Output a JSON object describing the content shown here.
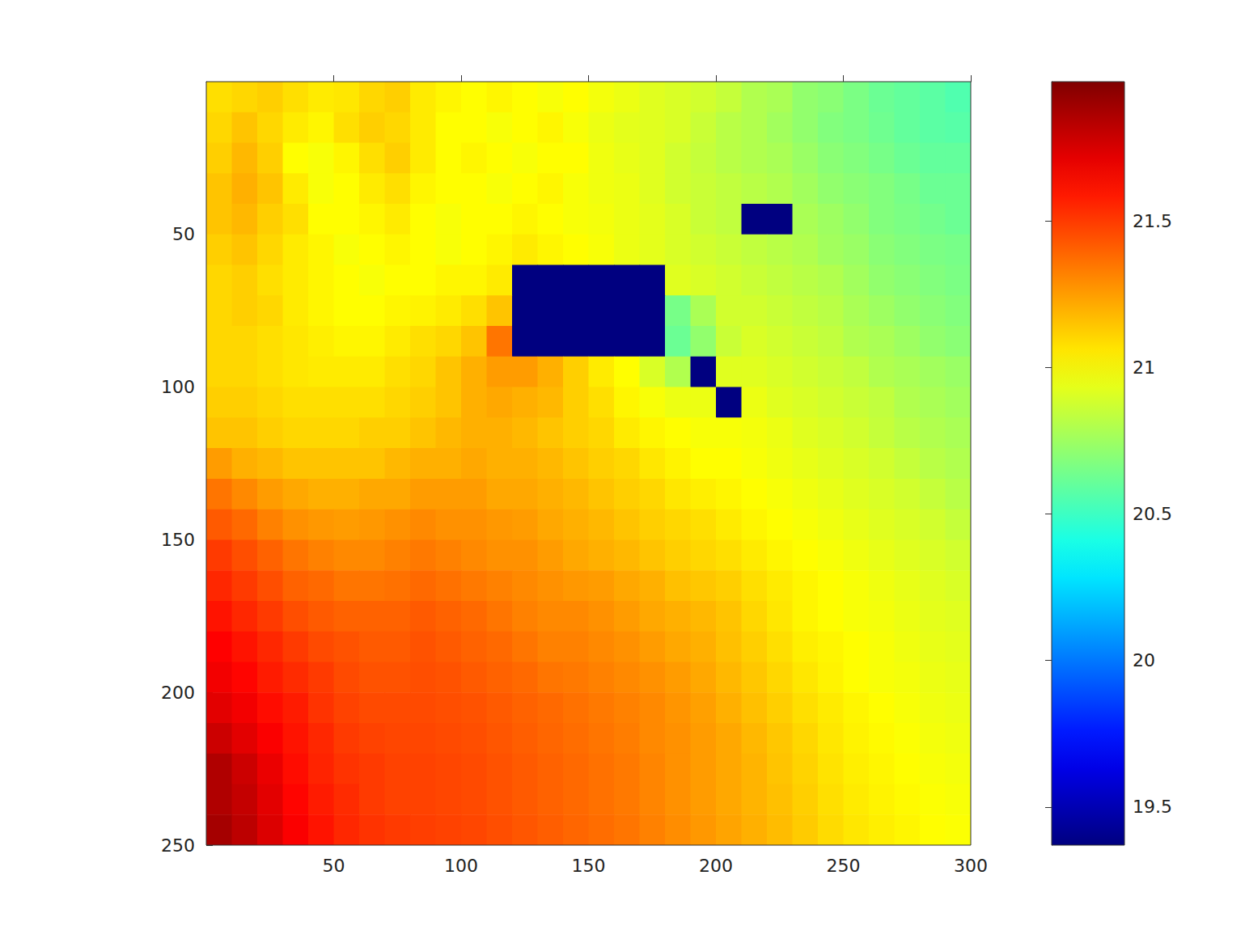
{
  "chart_data": {
    "type": "heatmap",
    "x": [
      5,
      15,
      25,
      35,
      45,
      55,
      65,
      75,
      85,
      95,
      105,
      115,
      125,
      135,
      145,
      155,
      165,
      175,
      185,
      195,
      205,
      215,
      225,
      235,
      245,
      255,
      265,
      275,
      285,
      295
    ],
    "y": [
      5,
      15,
      25,
      35,
      45,
      55,
      65,
      75,
      85,
      95,
      105,
      115,
      125,
      135,
      145,
      155,
      165,
      175,
      185,
      195,
      205,
      215,
      225,
      235,
      245
    ],
    "xlim": [
      0,
      300
    ],
    "ylim": [
      0,
      250
    ],
    "xticks": [
      50,
      100,
      150,
      200,
      250,
      300
    ],
    "yticks": [
      50,
      100,
      150,
      200,
      250
    ],
    "cells": [
      [
        21.08,
        21.1,
        21.12,
        21.08,
        21.05,
        21.06,
        21.1,
        21.12,
        21.05,
        21.02,
        21.0,
        21.02,
        21.0,
        20.98,
        21.0,
        20.97,
        20.95,
        20.92,
        20.9,
        20.88,
        20.85,
        20.8,
        20.78,
        20.72,
        20.7,
        20.66,
        20.62,
        20.6,
        20.58,
        20.55
      ],
      [
        21.1,
        21.15,
        21.1,
        21.05,
        21.02,
        21.08,
        21.12,
        21.1,
        21.05,
        21.0,
        21.0,
        20.98,
        21.0,
        21.02,
        20.98,
        20.95,
        20.93,
        20.92,
        20.9,
        20.86,
        20.82,
        20.8,
        20.76,
        20.72,
        20.68,
        20.66,
        20.63,
        20.6,
        20.58,
        20.57
      ],
      [
        21.12,
        21.18,
        21.12,
        21.0,
        20.98,
        21.02,
        21.08,
        21.12,
        21.05,
        21.0,
        21.02,
        21.0,
        20.98,
        21.0,
        21.0,
        20.96,
        20.94,
        20.92,
        20.88,
        20.85,
        20.82,
        20.8,
        20.78,
        20.74,
        20.7,
        20.68,
        20.65,
        20.62,
        20.6,
        20.6
      ],
      [
        21.15,
        21.2,
        21.15,
        21.05,
        20.98,
        21.0,
        21.05,
        21.08,
        21.02,
        21.0,
        21.0,
        20.98,
        21.0,
        21.02,
        20.98,
        20.96,
        20.95,
        20.92,
        20.88,
        20.86,
        20.84,
        20.82,
        20.8,
        20.76,
        20.72,
        20.7,
        20.68,
        20.65,
        20.62,
        20.62
      ],
      [
        21.15,
        21.18,
        21.12,
        21.08,
        21.0,
        21.0,
        21.02,
        21.05,
        21.0,
        20.98,
        21.0,
        21.0,
        21.02,
        21.0,
        20.98,
        20.97,
        20.95,
        20.93,
        20.9,
        20.86,
        20.84,
        19.37,
        19.37,
        20.78,
        20.75,
        20.72,
        20.68,
        20.66,
        20.64,
        20.62
      ],
      [
        21.12,
        21.15,
        21.1,
        21.05,
        21.02,
        20.98,
        21.0,
        21.02,
        21.0,
        20.98,
        21.0,
        21.02,
        21.05,
        21.02,
        21.0,
        20.98,
        20.95,
        20.93,
        20.9,
        20.88,
        20.86,
        20.84,
        20.82,
        20.8,
        20.76,
        20.74,
        20.7,
        20.68,
        20.66,
        20.65
      ],
      [
        21.1,
        21.12,
        21.08,
        21.05,
        21.02,
        21.0,
        20.98,
        21.0,
        21.0,
        21.02,
        21.02,
        21.05,
        19.37,
        19.37,
        19.37,
        19.37,
        19.37,
        19.37,
        20.92,
        20.9,
        20.88,
        20.86,
        20.84,
        20.82,
        20.8,
        20.76,
        20.72,
        20.7,
        20.68,
        20.66
      ],
      [
        21.1,
        21.12,
        21.1,
        21.05,
        21.02,
        21.0,
        21.0,
        21.02,
        21.03,
        21.05,
        21.08,
        21.15,
        19.37,
        19.37,
        19.37,
        19.37,
        19.37,
        19.37,
        20.65,
        20.78,
        20.88,
        20.88,
        20.86,
        20.84,
        20.82,
        20.78,
        20.75,
        20.72,
        20.7,
        20.68
      ],
      [
        21.1,
        21.1,
        21.08,
        21.06,
        21.04,
        21.02,
        21.02,
        21.05,
        21.08,
        21.1,
        21.15,
        21.35,
        19.37,
        19.37,
        19.37,
        19.37,
        19.37,
        19.37,
        20.62,
        20.72,
        20.86,
        20.9,
        20.88,
        20.86,
        20.84,
        20.8,
        20.78,
        20.75,
        20.72,
        20.7
      ],
      [
        21.1,
        21.1,
        21.08,
        21.06,
        21.05,
        21.05,
        21.05,
        21.08,
        21.1,
        21.15,
        21.2,
        21.25,
        21.25,
        21.2,
        21.12,
        21.05,
        21.0,
        20.9,
        20.8,
        19.37,
        20.92,
        20.92,
        20.9,
        20.88,
        20.86,
        20.84,
        20.8,
        20.78,
        20.76,
        20.74
      ],
      [
        21.12,
        21.12,
        21.1,
        21.08,
        21.08,
        21.08,
        21.08,
        21.1,
        21.12,
        21.15,
        21.2,
        21.22,
        21.2,
        21.18,
        21.12,
        21.08,
        21.02,
        20.98,
        20.95,
        20.95,
        19.37,
        20.95,
        20.92,
        20.9,
        20.88,
        20.86,
        20.84,
        20.8,
        20.78,
        20.76
      ],
      [
        21.15,
        21.15,
        21.12,
        21.1,
        21.1,
        21.1,
        21.12,
        21.12,
        21.15,
        21.18,
        21.2,
        21.2,
        21.18,
        21.15,
        21.12,
        21.1,
        21.05,
        21.02,
        21.0,
        20.98,
        20.98,
        20.97,
        20.95,
        20.92,
        20.9,
        20.88,
        20.85,
        20.82,
        20.8,
        20.78
      ],
      [
        21.25,
        21.2,
        21.18,
        21.15,
        21.15,
        21.15,
        21.15,
        21.18,
        21.2,
        21.2,
        21.22,
        21.2,
        21.2,
        21.18,
        21.15,
        21.12,
        21.1,
        21.06,
        21.03,
        21.0,
        21.0,
        20.98,
        20.96,
        20.94,
        20.92,
        20.9,
        20.88,
        20.85,
        20.82,
        20.8
      ],
      [
        21.35,
        21.3,
        21.25,
        21.22,
        21.2,
        21.2,
        21.22,
        21.22,
        21.25,
        21.25,
        21.25,
        21.22,
        21.22,
        21.2,
        21.18,
        21.15,
        21.12,
        21.1,
        21.06,
        21.04,
        21.02,
        21.0,
        20.98,
        20.96,
        20.94,
        20.92,
        20.9,
        20.88,
        20.85,
        20.82
      ],
      [
        21.42,
        21.38,
        21.32,
        21.28,
        21.26,
        21.25,
        21.26,
        21.28,
        21.3,
        21.28,
        21.28,
        21.26,
        21.25,
        21.22,
        21.2,
        21.18,
        21.15,
        21.12,
        21.1,
        21.08,
        21.05,
        21.02,
        21.0,
        20.98,
        20.96,
        20.94,
        20.92,
        20.9,
        20.88,
        20.85
      ],
      [
        21.5,
        21.45,
        21.4,
        21.35,
        21.32,
        21.3,
        21.3,
        21.32,
        21.34,
        21.32,
        21.3,
        21.28,
        21.28,
        21.25,
        21.22,
        21.2,
        21.18,
        21.15,
        21.12,
        21.1,
        21.08,
        21.05,
        21.02,
        21.0,
        20.98,
        20.96,
        20.94,
        20.92,
        20.9,
        20.88
      ],
      [
        21.55,
        21.5,
        21.45,
        21.4,
        21.38,
        21.35,
        21.35,
        21.36,
        21.38,
        21.36,
        21.34,
        21.32,
        21.3,
        21.28,
        21.26,
        21.25,
        21.22,
        21.2,
        21.16,
        21.14,
        21.12,
        21.08,
        21.05,
        21.02,
        21.0,
        20.98,
        20.96,
        20.94,
        20.92,
        20.9
      ],
      [
        21.6,
        21.55,
        21.5,
        21.45,
        21.42,
        21.4,
        21.4,
        21.4,
        21.42,
        21.4,
        21.38,
        21.35,
        21.32,
        21.3,
        21.3,
        21.28,
        21.25,
        21.22,
        21.2,
        21.18,
        21.15,
        21.1,
        21.06,
        21.02,
        21.0,
        20.98,
        20.97,
        20.95,
        20.93,
        20.92
      ],
      [
        21.65,
        21.6,
        21.55,
        21.5,
        21.46,
        21.44,
        21.42,
        21.42,
        21.44,
        21.42,
        21.4,
        21.38,
        21.35,
        21.32,
        21.32,
        21.3,
        21.28,
        21.25,
        21.22,
        21.2,
        21.16,
        21.12,
        21.08,
        21.04,
        21.02,
        21.0,
        20.98,
        20.96,
        20.94,
        20.93
      ],
      [
        21.68,
        21.64,
        21.58,
        21.54,
        21.5,
        21.46,
        21.44,
        21.44,
        21.45,
        21.44,
        21.42,
        21.4,
        21.38,
        21.35,
        21.34,
        21.32,
        21.3,
        21.28,
        21.25,
        21.22,
        21.18,
        21.14,
        21.1,
        21.06,
        21.03,
        21.0,
        20.98,
        20.97,
        20.95,
        20.94
      ],
      [
        21.72,
        21.68,
        21.62,
        21.58,
        21.52,
        21.48,
        21.46,
        21.46,
        21.46,
        21.45,
        21.44,
        21.42,
        21.4,
        21.38,
        21.36,
        21.34,
        21.32,
        21.3,
        21.27,
        21.24,
        21.2,
        21.16,
        21.12,
        21.08,
        21.05,
        21.02,
        21.0,
        20.98,
        20.96,
        20.95
      ],
      [
        21.78,
        21.72,
        21.66,
        21.6,
        21.55,
        21.5,
        21.48,
        21.47,
        21.47,
        21.46,
        21.45,
        21.43,
        21.41,
        21.39,
        21.37,
        21.35,
        21.33,
        21.3,
        21.28,
        21.25,
        21.22,
        21.18,
        21.14,
        21.1,
        21.06,
        21.03,
        21.01,
        20.99,
        20.97,
        20.96
      ],
      [
        21.85,
        21.78,
        21.7,
        21.62,
        21.56,
        21.52,
        21.5,
        21.48,
        21.48,
        21.47,
        21.46,
        21.44,
        21.42,
        21.4,
        21.38,
        21.36,
        21.34,
        21.31,
        21.28,
        21.25,
        21.22,
        21.19,
        21.15,
        21.11,
        21.07,
        21.04,
        21.02,
        21.0,
        20.98,
        20.97
      ],
      [
        21.85,
        21.8,
        21.72,
        21.64,
        21.58,
        21.54,
        21.5,
        21.48,
        21.48,
        21.47,
        21.46,
        21.44,
        21.42,
        21.4,
        21.38,
        21.36,
        21.34,
        21.31,
        21.28,
        21.25,
        21.22,
        21.19,
        21.16,
        21.12,
        21.08,
        21.05,
        21.03,
        21.01,
        20.99,
        20.98
      ],
      [
        21.88,
        21.82,
        21.74,
        21.66,
        21.6,
        21.55,
        21.52,
        21.5,
        21.49,
        21.48,
        21.47,
        21.45,
        21.43,
        21.41,
        21.39,
        21.37,
        21.35,
        21.32,
        21.29,
        21.26,
        21.23,
        21.2,
        21.17,
        21.13,
        21.09,
        21.06,
        21.04,
        21.02,
        21.0,
        20.99
      ]
    ],
    "colorbar": {
      "range": [
        19.37,
        21.975
      ],
      "ticks": [
        19.5,
        20,
        20.5,
        21,
        21.5
      ]
    }
  }
}
